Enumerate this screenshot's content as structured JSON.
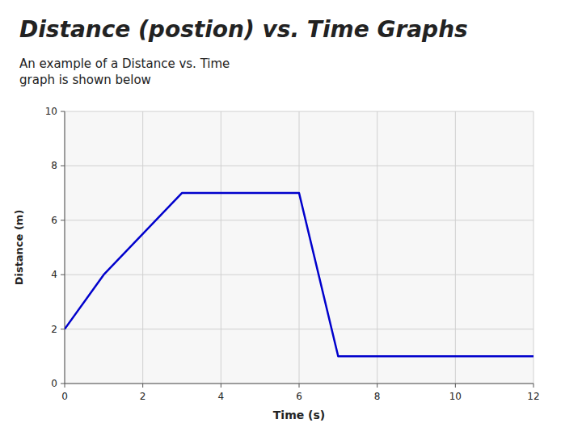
{
  "chart_data": {
    "type": "line",
    "title": "Distance (postion) vs. Time Graphs",
    "subtitle": "An example of a Distance vs. Time\ngraph is shown below",
    "x": [
      0,
      1,
      3,
      6,
      7,
      12
    ],
    "values": [
      2,
      4,
      7,
      7,
      1,
      1
    ],
    "color": "#0000CC",
    "xlabel": "Time (s)",
    "ylabel": "Distance (m)",
    "xlim": [
      0,
      12
    ],
    "ylim": [
      0,
      10
    ],
    "xticks": [
      0,
      2,
      4,
      6,
      8,
      10,
      12
    ],
    "yticks": [
      0,
      2,
      4,
      6,
      8,
      10
    ],
    "grid": true
  }
}
